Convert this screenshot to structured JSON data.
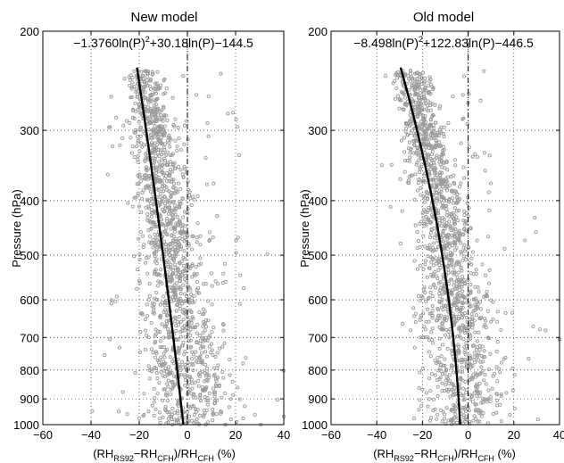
{
  "chart_data": [
    {
      "type": "scatter",
      "title": "New model",
      "annotation": {
        "c2": "−1.3760",
        "c1": "30.18",
        "c0": "−144.5"
      },
      "xlabel": {
        "rh": "(RH",
        "rs92": "RS92",
        "minus": "−RH",
        "cfh1": "CFH",
        "slash": ")/RH",
        "cfh2": "CFH",
        "unit": " (%)"
      },
      "ylabel": "Pressure (hPa)",
      "xlim": [
        -60,
        40
      ],
      "ylim": [
        200,
        1000
      ],
      "yscale": "log",
      "grid": true,
      "x_ticks": [
        "−60",
        "−40",
        "−20",
        "0",
        "20",
        "40"
      ],
      "y_ticks": [
        "200",
        "300",
        "400",
        "500",
        "600",
        "700",
        "800",
        "900",
        "1000"
      ],
      "fit": {
        "coef": [
          -1.376,
          30.18,
          -144.5
        ],
        "p_range": [
          232,
          1000
        ]
      },
      "scatter_seed": 7,
      "reference_line_x": 0,
      "colors": {
        "points": "#9a9a9a",
        "fit": "#000000",
        "grid": "#000000"
      }
    },
    {
      "type": "scatter",
      "title": "Old model",
      "annotation": {
        "c2": "−8.498",
        "c1": "122.83",
        "c0": "−446.5"
      },
      "xlabel": {
        "rh": "(RH",
        "rs92": "RS92",
        "minus": "−RH",
        "cfh1": "CFH",
        "slash": ")/RH",
        "cfh2": "CFH",
        "unit": " (%)"
      },
      "ylabel": "Pressure (hPa)",
      "xlim": [
        -60,
        40
      ],
      "ylim": [
        200,
        1000
      ],
      "yscale": "log",
      "grid": true,
      "x_ticks": [
        "−60",
        "−40",
        "−20",
        "0",
        "20",
        "40"
      ],
      "y_ticks": [
        "200",
        "300",
        "400",
        "500",
        "600",
        "700",
        "800",
        "900",
        "1000"
      ],
      "fit": {
        "coef": [
          -8.498,
          122.83,
          -446.5
        ],
        "p_range": [
          232,
          1000
        ]
      },
      "scatter_seed": 19,
      "reference_line_x": 0,
      "colors": {
        "points": "#9a9a9a",
        "fit": "#000000",
        "grid": "#000000"
      }
    }
  ]
}
